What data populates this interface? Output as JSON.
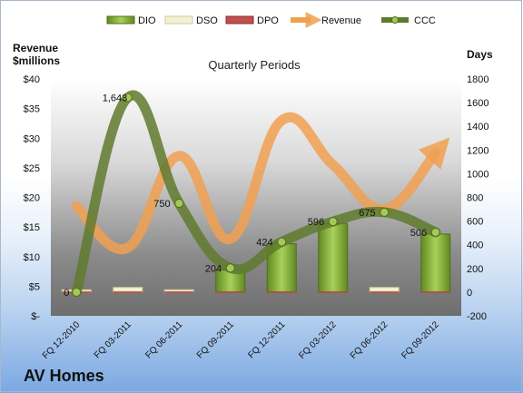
{
  "company_name": "AV Homes",
  "chart_data": {
    "type": "bar",
    "title": "Quarterly Periods",
    "y_left_label_line1": "Revenue",
    "y_left_label_line2": "$millions",
    "y_right_label": "Days",
    "categories": [
      "FQ 12-2010",
      "FQ 03-2011",
      "FQ 06-2011",
      "FQ 09-2011",
      "FQ 12-2011",
      "FQ 03-2012",
      "FQ 06-2012",
      "FQ 09-2012"
    ],
    "y_left_ticks": [
      "$-",
      "$5",
      "$10",
      "$15",
      "$20",
      "$25",
      "$30",
      "$35",
      "$40"
    ],
    "y_left_lim": [
      0,
      40
    ],
    "y_right_ticks": [
      "-200",
      "0",
      "200",
      "400",
      "600",
      "800",
      "1000",
      "1200",
      "1400",
      "1600",
      "1800"
    ],
    "y_right_lim": [
      -200,
      1800
    ],
    "legend_position": "top",
    "series": [
      {
        "name": "DIO",
        "kind": "bar",
        "axis": "right",
        "color": "#7ea93b",
        "values": [
          0,
          0,
          0,
          204,
          424,
          596,
          0,
          506
        ]
      },
      {
        "name": "DSO",
        "kind": "bar",
        "axis": "right",
        "color": "#f2f2d2",
        "values": [
          20,
          40,
          20,
          0,
          0,
          0,
          40,
          0
        ]
      },
      {
        "name": "DPO",
        "kind": "bar",
        "axis": "right",
        "color": "#c0504d",
        "values": [
          0,
          0,
          0,
          0,
          0,
          0,
          0,
          0
        ]
      },
      {
        "name": "Revenue",
        "kind": "line",
        "axis": "left",
        "color": "#f0a050",
        "values": [
          18.5,
          11.5,
          27,
          13,
          33,
          25.5,
          18,
          27.5
        ]
      },
      {
        "name": "CCC",
        "kind": "line",
        "axis": "right",
        "color": "#5f7a2e",
        "values": [
          0,
          1643,
          750,
          204,
          424,
          596,
          675,
          506
        ]
      }
    ],
    "data_labels": [
      "0",
      "1,643",
      "750",
      "204",
      "424",
      "596",
      "675",
      "506"
    ]
  }
}
